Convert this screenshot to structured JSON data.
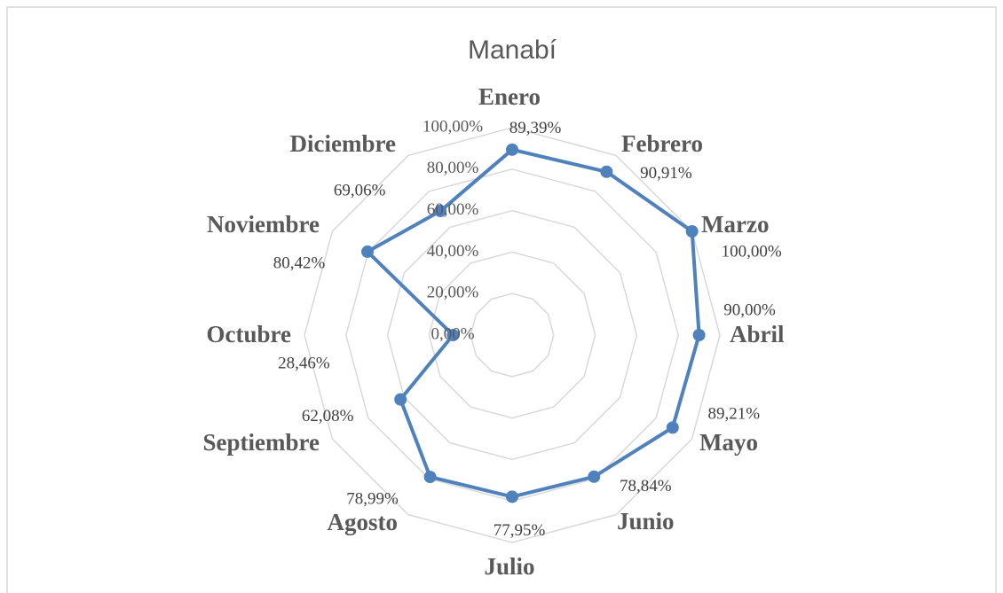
{
  "chart_data": {
    "type": "radar",
    "title": "Manabí",
    "categories": [
      "Enero",
      "Febrero",
      "Marzo",
      "Abril",
      "Mayo",
      "Junio",
      "Julio",
      "Agosto",
      "Septiembre",
      "Octubre",
      "Noviembre",
      "Diciembre"
    ],
    "values": [
      89.39,
      90.91,
      100,
      90,
      89.21,
      78.84,
      77.95,
      78.99,
      62.08,
      28.46,
      80.42,
      69.06
    ],
    "value_labels": [
      "89,39%",
      "90,91%",
      "100,00%",
      "90,00%",
      "89,21%",
      "78,84%",
      "77,95%",
      "78,99%",
      "62,08%",
      "28,46%",
      "80,42%",
      "69,06%"
    ],
    "color": "#4f81bd",
    "ylim": [
      0,
      100
    ],
    "yticks": [
      {
        "value": 0,
        "label": "0,00%"
      },
      {
        "value": 20,
        "label": "20,00%"
      },
      {
        "value": 40,
        "label": "40,00%"
      },
      {
        "value": 60,
        "label": "60,00%"
      },
      {
        "value": 80,
        "label": "80,00%"
      },
      {
        "value": 100,
        "label": "100,00%"
      }
    ],
    "grid": true
  }
}
